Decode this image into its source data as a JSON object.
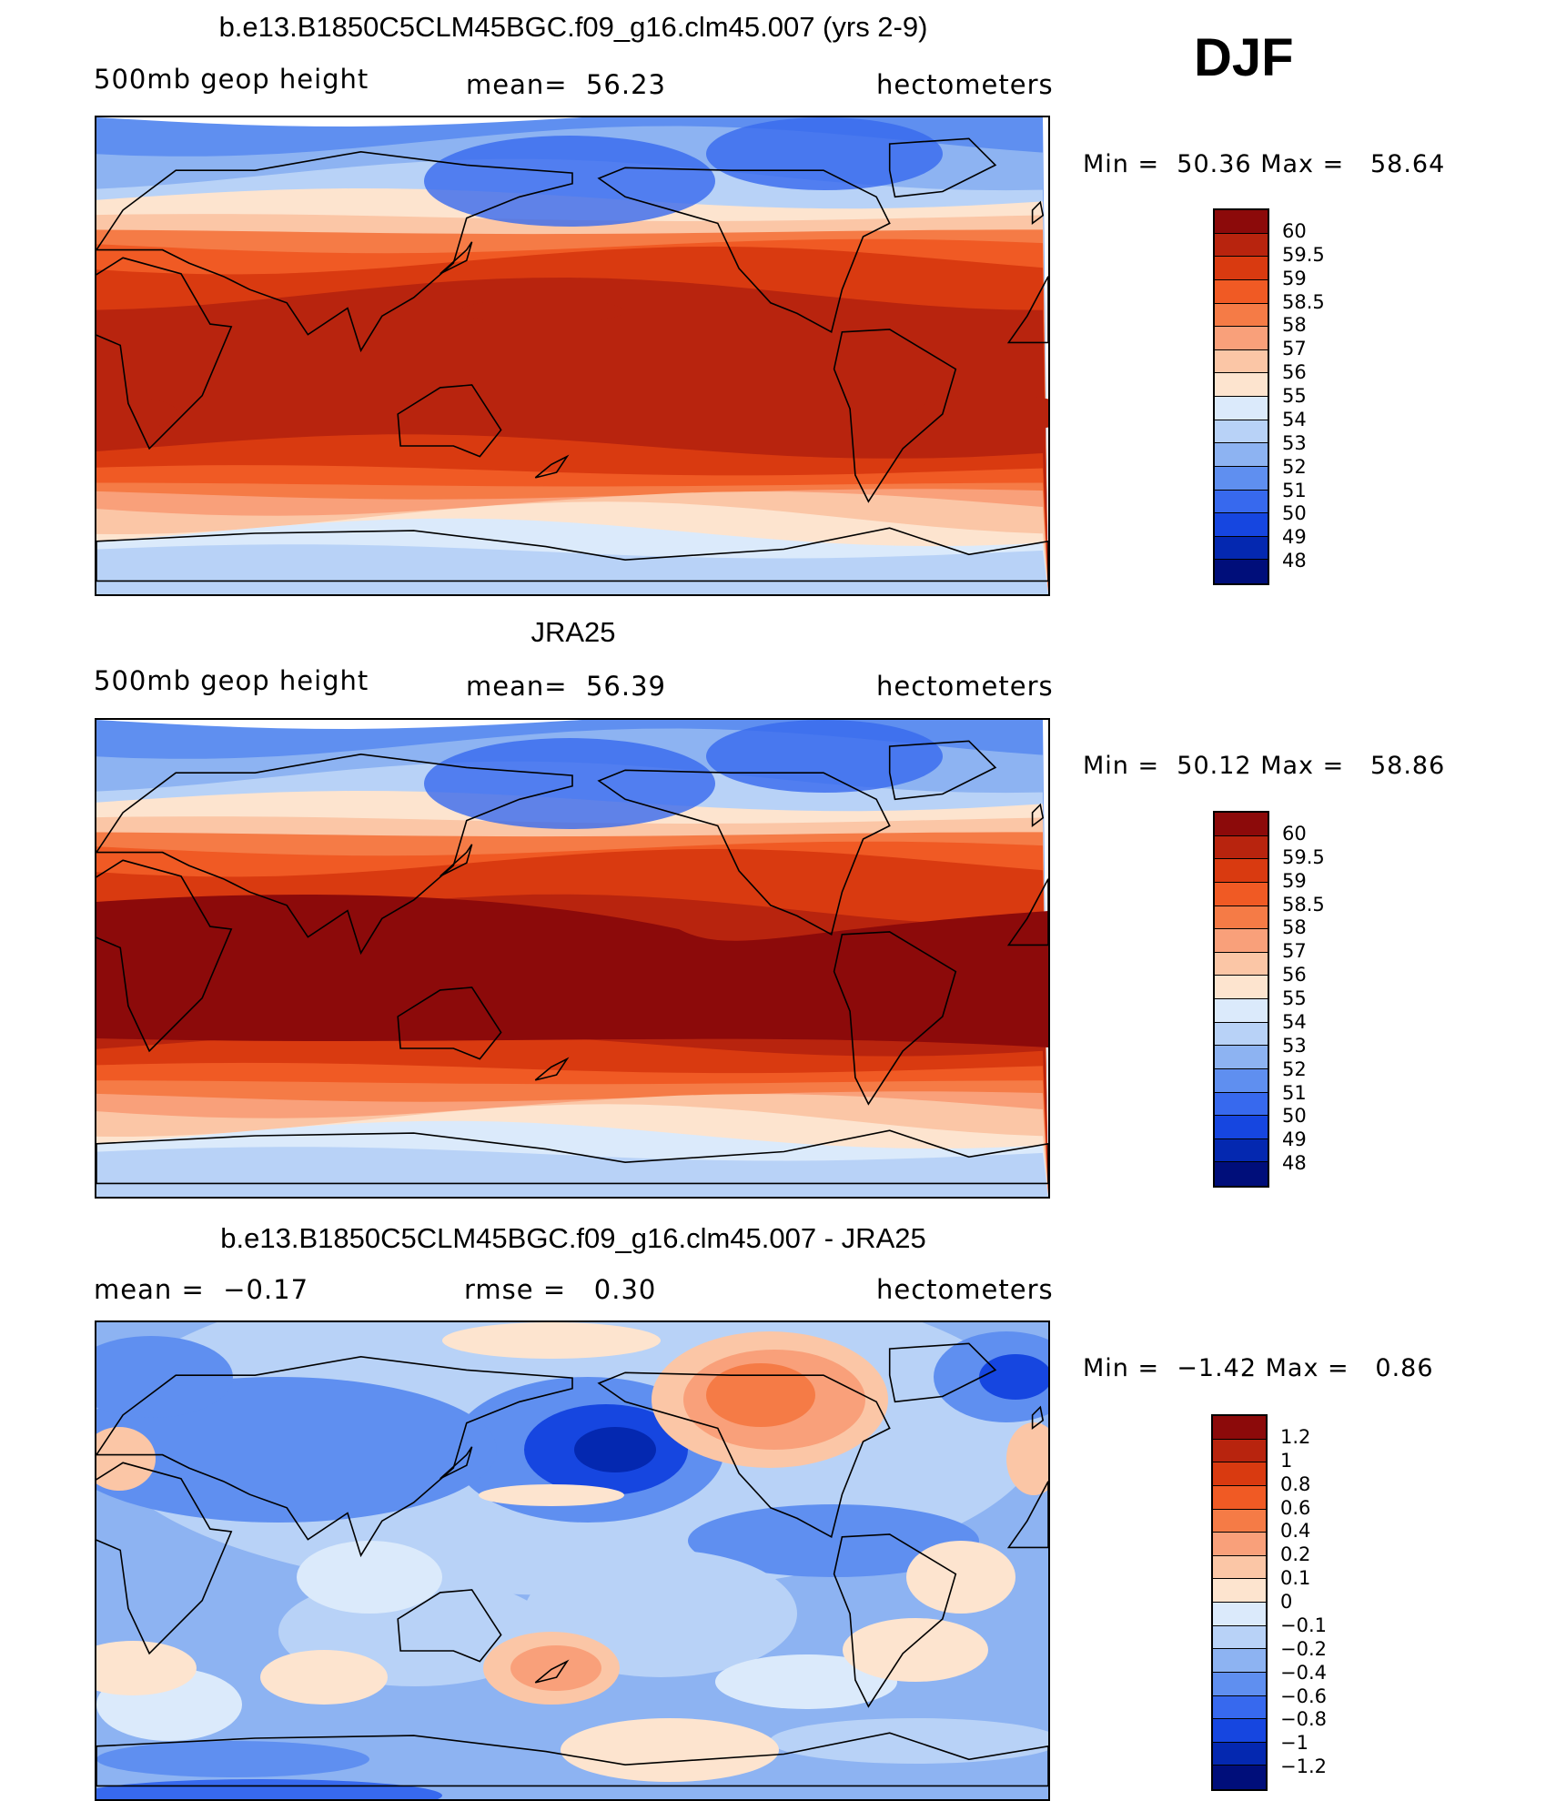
{
  "season": "DJF",
  "panels": [
    {
      "title": "b.e13.B1850C5CLM45BGC.f09_g16.clm45.007 (yrs 2-9)",
      "left_label": "500mb geop height",
      "center_label": "mean=  56.23",
      "right_label": "hectometers",
      "min_label": "Min = ",
      "min_value": "50.36",
      "max_label": "Max = ",
      "max_value": "58.64",
      "field": "model",
      "colorbar": {
        "labels": [
          "60",
          "59.5",
          "59",
          "58.5",
          "58",
          "57",
          "56",
          "55",
          "54",
          "53",
          "52",
          "51",
          "50",
          "49",
          "48"
        ],
        "colors": [
          "#8c0a0a",
          "#b8240e",
          "#d93a10",
          "#f05a24",
          "#f57b46",
          "#f9a07a",
          "#fbc6a6",
          "#fde4cf",
          "#dbeafb",
          "#b8d2f7",
          "#8db3f2",
          "#5f8ff0",
          "#3769ee",
          "#1646e0",
          "#0428b0",
          "#000e7a"
        ]
      }
    },
    {
      "title": "JRA25",
      "left_label": "500mb geop height",
      "center_label": "mean=  56.39",
      "right_label": "hectometers",
      "min_label": "Min = ",
      "min_value": "50.12",
      "max_label": "Max = ",
      "max_value": "58.86",
      "field": "obs",
      "colorbar": {
        "labels": [
          "60",
          "59.5",
          "59",
          "58.5",
          "58",
          "57",
          "56",
          "55",
          "54",
          "53",
          "52",
          "51",
          "50",
          "49",
          "48"
        ],
        "colors": [
          "#8c0a0a",
          "#b8240e",
          "#d93a10",
          "#f05a24",
          "#f57b46",
          "#f9a07a",
          "#fbc6a6",
          "#fde4cf",
          "#dbeafb",
          "#b8d2f7",
          "#8db3f2",
          "#5f8ff0",
          "#3769ee",
          "#1646e0",
          "#0428b0",
          "#000e7a"
        ]
      }
    },
    {
      "title": "b.e13.B1850C5CLM45BGC.f09_g16.clm45.007 - JRA25",
      "left_label": "mean =  −0.17",
      "center_label": "rmse =   0.30",
      "right_label": "hectometers",
      "min_label": "Min = ",
      "min_value": "−1.42",
      "max_label": "Max = ",
      "max_value": "0.86",
      "field": "diff",
      "colorbar": {
        "labels": [
          "1.2",
          "1",
          "0.8",
          "0.6",
          "0.4",
          "0.2",
          "0.1",
          "0",
          "−0.1",
          "−0.2",
          "−0.4",
          "−0.6",
          "−0.8",
          "−1",
          "−1.2"
        ],
        "colors": [
          "#8c0a0a",
          "#b8240e",
          "#d93a10",
          "#f05a24",
          "#f57b46",
          "#f9a07a",
          "#fbc6a6",
          "#fde4cf",
          "#dbeafb",
          "#b8d2f7",
          "#8db3f2",
          "#5f8ff0",
          "#3769ee",
          "#1646e0",
          "#0428b0",
          "#000e7a"
        ]
      }
    }
  ]
}
